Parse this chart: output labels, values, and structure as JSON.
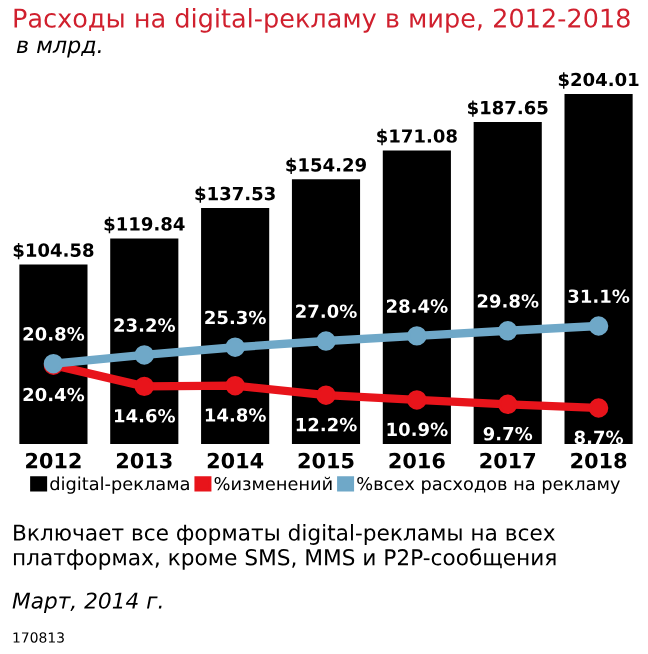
{
  "chart_data": {
    "type": "bar",
    "title": "Расходы на digital-рекламу в мире, 2012-2018",
    "subtitle": "в млрд.",
    "categories": [
      "2012",
      "2013",
      "2014",
      "2015",
      "2016",
      "2017",
      "2018"
    ],
    "tick_labels": "x",
    "legend": "bottom",
    "marker": "circle",
    "series": [
      {
        "name": "digital-реклама",
        "color": "#000000",
        "values": [
          104.58,
          119.84,
          137.53,
          154.29,
          171.08,
          187.65,
          204.01
        ],
        "value_labels": [
          "$104.58",
          "$119.84",
          "$137.53",
          "$154.29",
          "$171.08",
          "$187.65",
          "$204.01"
        ]
      },
      {
        "name": "%изменений",
        "type": "line",
        "axis": "y2",
        "color": "#e8141b",
        "values": [
          20.4,
          14.6,
          14.8,
          12.2,
          10.9,
          9.7,
          8.7
        ],
        "value_labels": [
          "20.4%",
          "14.6%",
          "14.8%",
          "12.2%",
          "10.9%",
          "9.7%",
          "8.7%"
        ]
      },
      {
        "name": "%всех расходов на рекламу",
        "type": "line",
        "axis": "y2",
        "color": "#6fa8c8",
        "values": [
          20.8,
          23.2,
          25.3,
          27.0,
          28.4,
          29.8,
          31.1
        ],
        "value_labels": [
          "20.8%",
          "23.2%",
          "25.3%",
          "27.0%",
          "28.4%",
          "29.8%",
          "31.1%"
        ]
      }
    ],
    "annotations": [
      "Включает все форматы digital-рекламы на всех платформах, кроме SMS, MMS и P2P-сообщения",
      "Март, 2014 г.",
      "170813"
    ]
  }
}
